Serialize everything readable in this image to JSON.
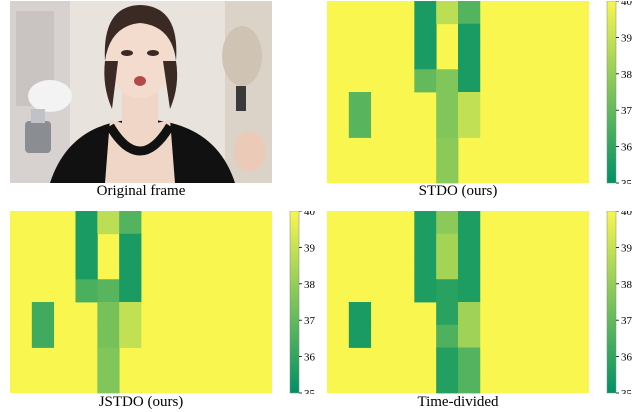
{
  "photo_caption": "Original frame",
  "colorbar_ticks": [
    "35",
    "36",
    "37",
    "38",
    "39",
    "40"
  ],
  "colormap": {
    "low": "#009165",
    "high": "#f8f64f",
    "vmin": 35,
    "vmax": 40
  },
  "chart_data": [
    {
      "type": "heatmap",
      "title": "STDO (ours)",
      "rows": 8,
      "cols": 12,
      "background_value": 40,
      "clim": [
        35,
        40
      ],
      "cells": [
        {
          "r": 0,
          "c": 4,
          "v": 35.5
        },
        {
          "r": 0,
          "c": 5,
          "v": 38.8
        },
        {
          "r": 0,
          "c": 6,
          "v": 36.7
        },
        {
          "r": 1,
          "c": 4,
          "v": 35.5
        },
        {
          "r": 1,
          "c": 6,
          "v": 35.5
        },
        {
          "r": 2,
          "c": 4,
          "v": 35.5
        },
        {
          "r": 2,
          "c": 6,
          "v": 35.5
        },
        {
          "r": 3,
          "c": 4,
          "v": 37.0
        },
        {
          "r": 3,
          "c": 5,
          "v": 37.6
        },
        {
          "r": 3,
          "c": 6,
          "v": 35.5
        },
        {
          "r": 4,
          "c": 1,
          "v": 36.8
        },
        {
          "r": 4,
          "c": 5,
          "v": 37.6
        },
        {
          "r": 4,
          "c": 6,
          "v": 38.9
        },
        {
          "r": 5,
          "c": 1,
          "v": 36.8
        },
        {
          "r": 5,
          "c": 5,
          "v": 37.6
        },
        {
          "r": 5,
          "c": 6,
          "v": 38.9
        },
        {
          "r": 6,
          "c": 5,
          "v": 37.8
        },
        {
          "r": 7,
          "c": 5,
          "v": 37.8
        }
      ]
    },
    {
      "type": "heatmap",
      "title": "JSTDO (ours)",
      "rows": 8,
      "cols": 12,
      "background_value": 40,
      "clim": [
        35,
        40
      ],
      "cells": [
        {
          "r": 0,
          "c": 3,
          "v": 35.5
        },
        {
          "r": 0,
          "c": 4,
          "v": 38.8
        },
        {
          "r": 0,
          "c": 5,
          "v": 36.7
        },
        {
          "r": 1,
          "c": 3,
          "v": 35.5
        },
        {
          "r": 1,
          "c": 5,
          "v": 35.5
        },
        {
          "r": 2,
          "c": 3,
          "v": 35.5
        },
        {
          "r": 2,
          "c": 5,
          "v": 35.5
        },
        {
          "r": 3,
          "c": 3,
          "v": 36.5
        },
        {
          "r": 3,
          "c": 4,
          "v": 36.8
        },
        {
          "r": 3,
          "c": 5,
          "v": 35.5
        },
        {
          "r": 4,
          "c": 1,
          "v": 36.3
        },
        {
          "r": 4,
          "c": 4,
          "v": 37.4
        },
        {
          "r": 4,
          "c": 5,
          "v": 38.9
        },
        {
          "r": 5,
          "c": 1,
          "v": 36.3
        },
        {
          "r": 5,
          "c": 4,
          "v": 37.4
        },
        {
          "r": 5,
          "c": 5,
          "v": 38.9
        },
        {
          "r": 6,
          "c": 4,
          "v": 37.6
        },
        {
          "r": 7,
          "c": 4,
          "v": 37.6
        }
      ]
    },
    {
      "type": "heatmap",
      "title": "Time-divided",
      "rows": 8,
      "cols": 12,
      "background_value": 40,
      "clim": [
        35,
        40
      ],
      "cells": [
        {
          "r": 0,
          "c": 4,
          "v": 35.6
        },
        {
          "r": 0,
          "c": 5,
          "v": 37.8
        },
        {
          "r": 0,
          "c": 6,
          "v": 35.6
        },
        {
          "r": 1,
          "c": 4,
          "v": 35.6
        },
        {
          "r": 1,
          "c": 5,
          "v": 38.3
        },
        {
          "r": 1,
          "c": 6,
          "v": 35.6
        },
        {
          "r": 2,
          "c": 4,
          "v": 35.6
        },
        {
          "r": 2,
          "c": 5,
          "v": 38.3
        },
        {
          "r": 2,
          "c": 6,
          "v": 35.6
        },
        {
          "r": 3,
          "c": 4,
          "v": 35.6
        },
        {
          "r": 3,
          "c": 5,
          "v": 35.8
        },
        {
          "r": 3,
          "c": 6,
          "v": 35.6
        },
        {
          "r": 4,
          "c": 1,
          "v": 35.5
        },
        {
          "r": 4,
          "c": 5,
          "v": 35.8
        },
        {
          "r": 4,
          "c": 6,
          "v": 38.2
        },
        {
          "r": 5,
          "c": 1,
          "v": 35.5
        },
        {
          "r": 5,
          "c": 5,
          "v": 36.6
        },
        {
          "r": 5,
          "c": 6,
          "v": 38.2
        },
        {
          "r": 6,
          "c": 5,
          "v": 35.7
        },
        {
          "r": 6,
          "c": 6,
          "v": 36.7
        },
        {
          "r": 7,
          "c": 5,
          "v": 35.7
        },
        {
          "r": 7,
          "c": 6,
          "v": 36.7
        }
      ]
    }
  ]
}
